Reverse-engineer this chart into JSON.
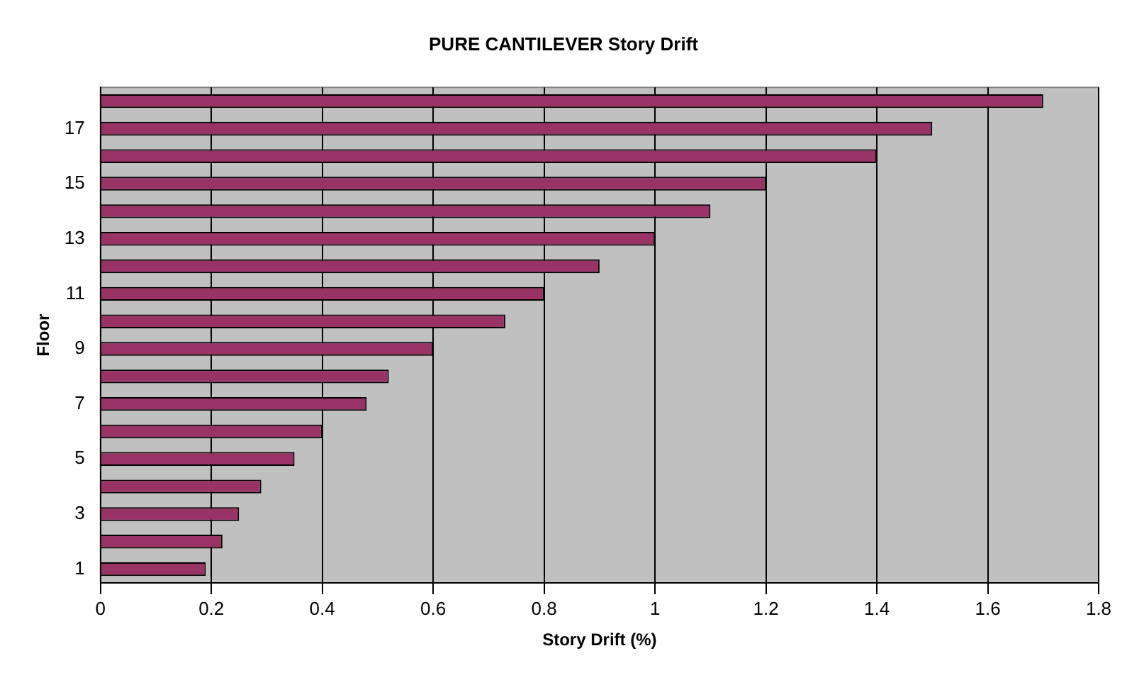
{
  "chart_data": {
    "type": "bar",
    "orientation": "horizontal",
    "title": "PURE CANTILEVER Story Drift",
    "xlabel": "Story Drift (%)",
    "ylabel": "Floor",
    "categories": [
      null,
      "17",
      null,
      "15",
      null,
      "13",
      null,
      "11",
      null,
      "9",
      null,
      "7",
      null,
      "5",
      null,
      "3",
      null,
      "1"
    ],
    "values": [
      1.7,
      1.5,
      1.4,
      1.2,
      1.1,
      1.0,
      0.9,
      0.8,
      0.73,
      0.6,
      0.52,
      0.48,
      0.4,
      0.35,
      0.29,
      0.25,
      0.22,
      0.19
    ],
    "color": "#993366",
    "xlim": [
      0,
      1.8
    ],
    "xticks": [
      0,
      0.2,
      0.4,
      0.6,
      0.8,
      1,
      1.2,
      1.4,
      1.6,
      1.8
    ],
    "grid": "x",
    "legend": false
  }
}
